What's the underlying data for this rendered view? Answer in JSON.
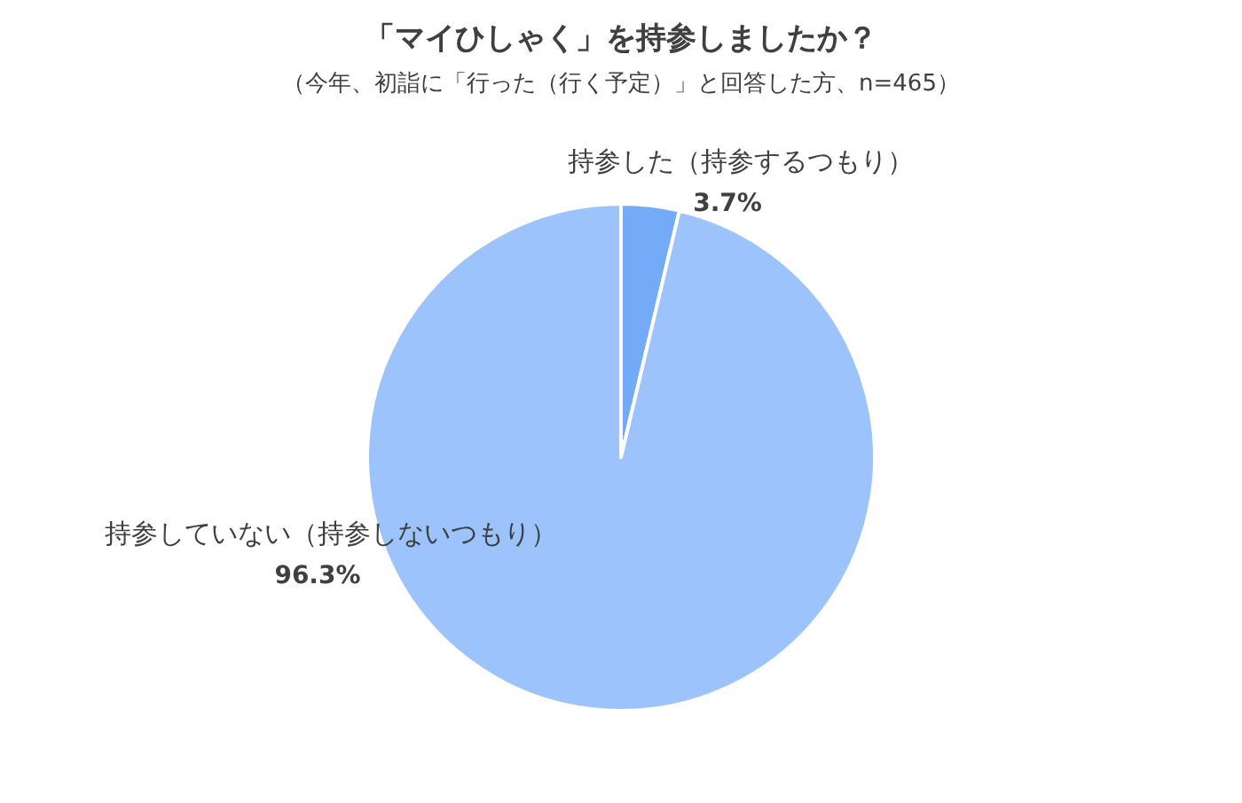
{
  "chart_data": {
    "type": "pie",
    "title": "「マイひしゃく」を持参しましたか？",
    "subtitle": "（今年、初詣に「行った（行く予定）」と回答した方、n=465）",
    "categories": [
      "持参した（持参するつもり）",
      "持参していない（持参しないつもり）"
    ],
    "values": [
      3.7,
      96.3
    ],
    "colors": [
      "#74abf8",
      "#9cc3fc"
    ],
    "value_labels": [
      "3.7%",
      "96.3%"
    ]
  }
}
